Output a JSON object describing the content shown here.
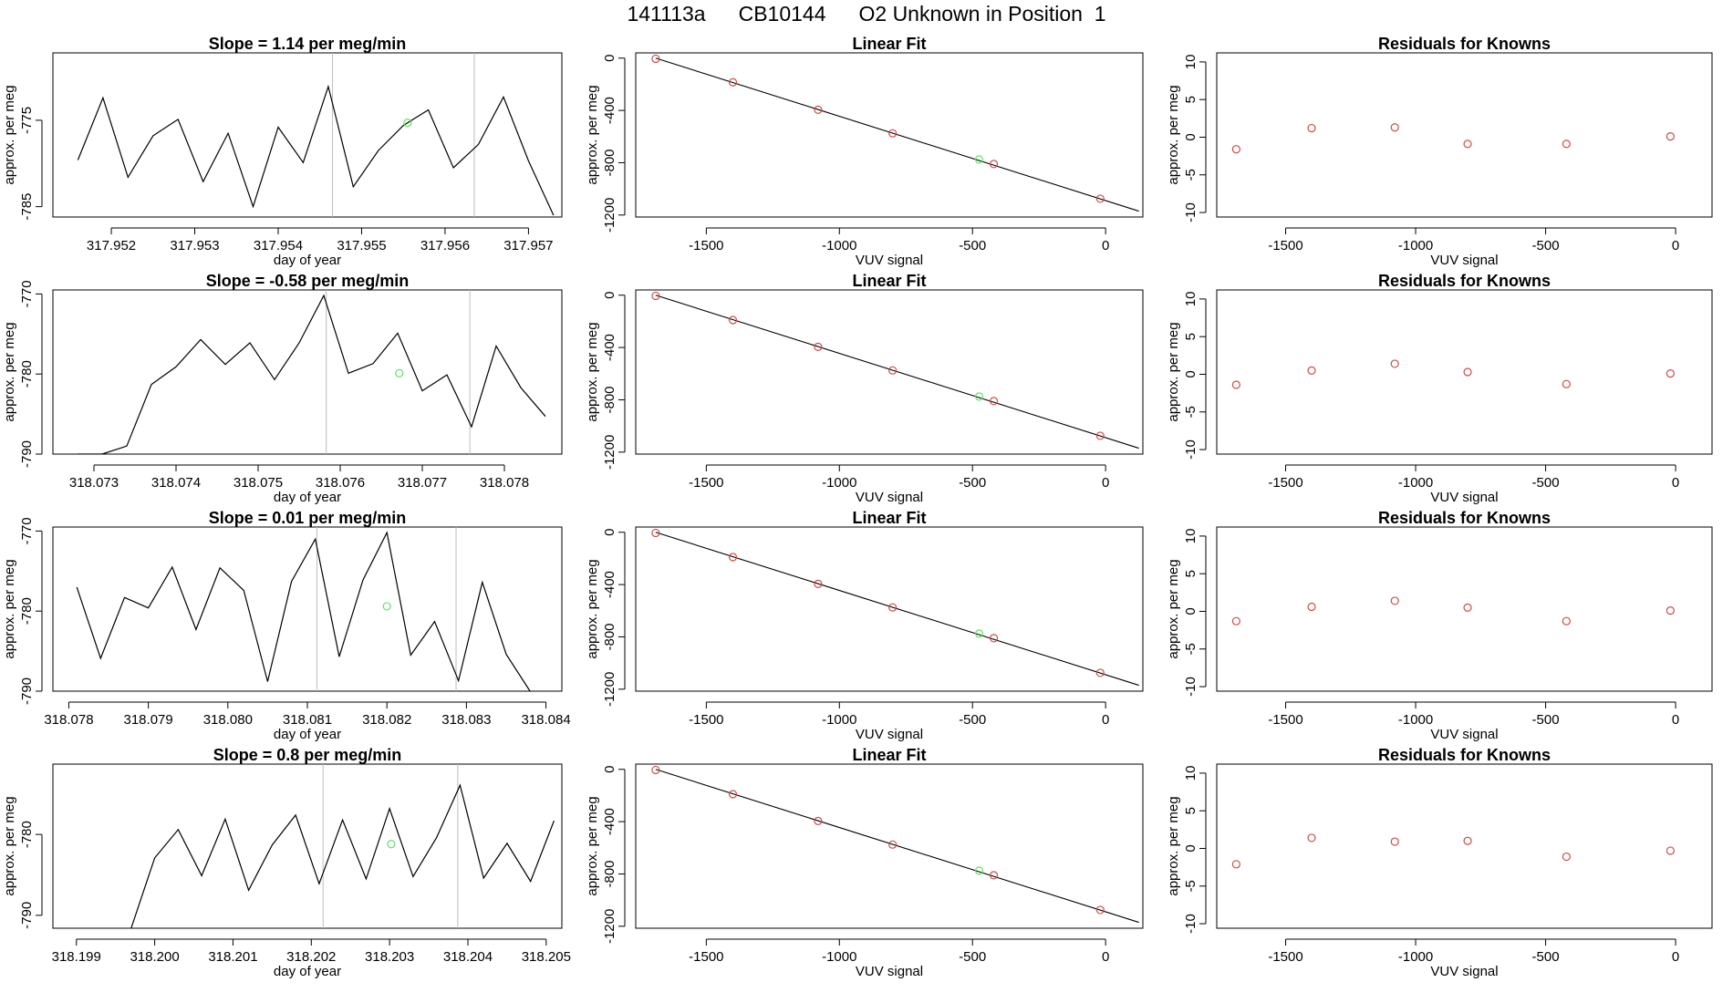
{
  "title": {
    "run_id": "141113a",
    "tank_id": "CB10144",
    "label": "O2 Unknown in Position  1"
  },
  "colors": {
    "line": "#000000",
    "axis": "#000000",
    "vline": "#bdbdbd",
    "known_point": "#cd4a4a",
    "unknown_point": "#5fe35f",
    "residual_point": "#cd4a4a"
  },
  "chart_data": [
    {
      "type": "line",
      "row": 1,
      "panel": "time_series",
      "title": "Slope =  1.14  per meg/min",
      "xlabel": "day of year",
      "ylabel": "approx. per meg",
      "xlim": [
        317.9513,
        317.9574
      ],
      "ylim": [
        -786.2,
        -767.2
      ],
      "xticks": [
        317.952,
        317.953,
        317.954,
        317.955,
        317.956,
        317.957
      ],
      "xtick_labels": [
        "317.952",
        "317.953",
        "317.954",
        "317.955",
        "317.956",
        "317.957"
      ],
      "yticks": [
        -775,
        -785
      ],
      "ytick_labels": [
        "-775",
        "-785"
      ],
      "vlines": [
        317.95465,
        317.95635
      ],
      "x": [
        317.9516,
        317.9519,
        317.9522,
        317.9525,
        317.9528,
        317.9531,
        317.9534,
        317.9537,
        317.954,
        317.9543,
        317.9546,
        317.9549,
        317.9552,
        317.9555,
        317.9558,
        317.9561,
        317.9564,
        317.9567,
        317.957,
        317.9573
      ],
      "values": [
        -779.6,
        -772.4,
        -781.6,
        -776.8,
        -774.9,
        -782.1,
        -776.5,
        -785,
        -775.8,
        -779.9,
        -771.1,
        -782.7,
        -778.5,
        -775.6,
        -773.8,
        -780.5,
        -777.8,
        -772.3,
        -779.7,
        -786
      ],
      "unknown_point": {
        "x": 317.95555,
        "y": -775.3
      }
    },
    {
      "type": "scatter",
      "row": 1,
      "panel": "linear_fit",
      "title": "Linear Fit",
      "xlabel": "VUV signal",
      "ylabel": "approx. per meg",
      "xlim": [
        -1765,
        140
      ],
      "ylim": [
        -1215,
        40
      ],
      "xticks": [
        -1500,
        -1000,
        -500,
        0
      ],
      "xtick_labels": [
        "-1500",
        "-1000",
        "-500",
        "0"
      ],
      "yticks": [
        0,
        -400,
        -800,
        -1200
      ],
      "ytick_labels": [
        "0",
        "-400",
        "-800",
        "-1200"
      ],
      "fit_line": [
        [
          -1690,
          0
        ],
        [
          125,
          -1170
        ]
      ],
      "x": [
        -1690,
        -1400,
        -1080,
        -800,
        -420,
        -20
      ],
      "values": [
        -5,
        -185,
        -395,
        -575,
        -810,
        -1075
      ],
      "unknown_point": {
        "x": -475,
        "y": -775
      }
    },
    {
      "type": "scatter",
      "row": 1,
      "panel": "residuals",
      "title": "Residuals for Knowns",
      "xlabel": "VUV signal",
      "ylabel": "approx. per meg",
      "xlim": [
        -1765,
        140
      ],
      "ylim": [
        -10.6,
        11.2
      ],
      "xticks": [
        -1500,
        -1000,
        -500,
        0
      ],
      "xtick_labels": [
        "-1500",
        "-1000",
        "-500",
        "0"
      ],
      "yticks": [
        10,
        5,
        0,
        -5,
        -10
      ],
      "ytick_labels": [
        "10",
        "5",
        "0",
        "-5",
        "-10"
      ],
      "x": [
        -1690,
        -1400,
        -1080,
        -800,
        -420,
        -20
      ],
      "values": [
        -1.6,
        1.2,
        1.3,
        -0.9,
        -0.9,
        0.1
      ]
    },
    {
      "type": "line",
      "row": 2,
      "panel": "time_series",
      "title": "Slope =  -0.58  per meg/min",
      "xlabel": "day of year",
      "ylabel": "approx. per meg",
      "xlim": [
        318.0725,
        318.0787
      ],
      "ylim": [
        -790,
        -769.5
      ],
      "xticks": [
        318.073,
        318.074,
        318.075,
        318.076,
        318.077,
        318.078
      ],
      "xtick_labels": [
        "318.073",
        "318.074",
        "318.075",
        "318.076",
        "318.077",
        "318.078"
      ],
      "yticks": [
        -770,
        -780,
        -790
      ],
      "ytick_labels": [
        "-770",
        "-780",
        "-790"
      ],
      "vlines": [
        318.07583,
        318.07758
      ],
      "x": [
        318.0728,
        318.0731,
        318.0734,
        318.0737,
        318.074,
        318.0743,
        318.0746,
        318.0749,
        318.0752,
        318.0755,
        318.0758,
        318.0761,
        318.0764,
        318.0767,
        318.077,
        318.0773,
        318.0776,
        318.0779,
        318.0782,
        318.0785
      ],
      "values": [
        -790,
        -790,
        -789,
        -781.3,
        -779.1,
        -775.7,
        -778.8,
        -776.1,
        -780.7,
        -776.1,
        -770.2,
        -779.9,
        -778.7,
        -774.9,
        -782.1,
        -780.1,
        -786.6,
        -776.5,
        -781.7,
        -785.3
      ],
      "unknown_point": {
        "x": 318.07672,
        "y": -779.9
      }
    },
    {
      "type": "scatter",
      "row": 2,
      "panel": "linear_fit",
      "title": "Linear Fit",
      "xlabel": "VUV signal",
      "ylabel": "approx. per meg",
      "xlim": [
        -1765,
        140
      ],
      "ylim": [
        -1215,
        40
      ],
      "xticks": [
        -1500,
        -1000,
        -500,
        0
      ],
      "xtick_labels": [
        "-1500",
        "-1000",
        "-500",
        "0"
      ],
      "yticks": [
        0,
        -400,
        -800,
        -1200
      ],
      "ytick_labels": [
        "0",
        "-400",
        "-800",
        "-1200"
      ],
      "fit_line": [
        [
          -1690,
          0
        ],
        [
          125,
          -1170
        ]
      ],
      "x": [
        -1690,
        -1400,
        -1080,
        -800,
        -420,
        -20
      ],
      "values": [
        -5,
        -190,
        -395,
        -575,
        -810,
        -1075
      ],
      "unknown_point": {
        "x": -475,
        "y": -775
      }
    },
    {
      "type": "scatter",
      "row": 2,
      "panel": "residuals",
      "title": "Residuals for Knowns",
      "xlabel": "VUV signal",
      "ylabel": "approx. per meg",
      "xlim": [
        -1765,
        140
      ],
      "ylim": [
        -10.6,
        11.2
      ],
      "xticks": [
        -1500,
        -1000,
        -500,
        0
      ],
      "xtick_labels": [
        "-1500",
        "-1000",
        "-500",
        "0"
      ],
      "yticks": [
        10,
        5,
        0,
        -5,
        -10
      ],
      "ytick_labels": [
        "10",
        "5",
        "0",
        "-5",
        "-10"
      ],
      "x": [
        -1690,
        -1400,
        -1080,
        -800,
        -420,
        -20
      ],
      "values": [
        -1.4,
        0.5,
        1.4,
        0.3,
        -1.3,
        0.1
      ]
    },
    {
      "type": "line",
      "row": 3,
      "panel": "time_series",
      "title": "Slope =  0.01  per meg/min",
      "xlabel": "day of year",
      "ylabel": "approx. per meg",
      "xlim": [
        318.0778,
        318.0842
      ],
      "ylim": [
        -790,
        -769.5
      ],
      "xticks": [
        318.078,
        318.079,
        318.08,
        318.081,
        318.082,
        318.083,
        318.084
      ],
      "xtick_labels": [
        "318.078",
        "318.079",
        "318.080",
        "318.081",
        "318.082",
        "318.083",
        "318.084"
      ],
      "yticks": [
        -770,
        -780,
        -790
      ],
      "ytick_labels": [
        "-770",
        "-780",
        "-790"
      ],
      "vlines": [
        318.08112,
        318.08287
      ],
      "x": [
        318.0781,
        318.0784,
        318.0787,
        318.079,
        318.0793,
        318.0796,
        318.0799,
        318.0802,
        318.0805,
        318.0808,
        318.0811,
        318.0814,
        318.0817,
        318.082,
        318.0823,
        318.0826,
        318.0829,
        318.0832,
        318.0835,
        318.0838
      ],
      "values": [
        -777,
        -785.9,
        -778.3,
        -779.6,
        -774.5,
        -782.3,
        -774.6,
        -777.4,
        -788.8,
        -776.3,
        -771,
        -785.7,
        -776.1,
        -770.2,
        -785.5,
        -781.3,
        -788.7,
        -776.4,
        -785.4,
        -790
      ],
      "unknown_point": {
        "x": 318.082,
        "y": -779.4
      }
    },
    {
      "type": "scatter",
      "row": 3,
      "panel": "linear_fit",
      "title": "Linear Fit",
      "xlabel": "VUV signal",
      "ylabel": "approx. per meg",
      "xlim": [
        -1765,
        140
      ],
      "ylim": [
        -1215,
        40
      ],
      "xticks": [
        -1500,
        -1000,
        -500,
        0
      ],
      "xtick_labels": [
        "-1500",
        "-1000",
        "-500",
        "0"
      ],
      "yticks": [
        0,
        -400,
        -800,
        -1200
      ],
      "ytick_labels": [
        "0",
        "-400",
        "-800",
        "-1200"
      ],
      "fit_line": [
        [
          -1690,
          0
        ],
        [
          125,
          -1170
        ]
      ],
      "x": [
        -1690,
        -1400,
        -1080,
        -800,
        -420,
        -20
      ],
      "values": [
        -5,
        -190,
        -395,
        -575,
        -810,
        -1075
      ],
      "unknown_point": {
        "x": -475,
        "y": -775
      }
    },
    {
      "type": "scatter",
      "row": 3,
      "panel": "residuals",
      "title": "Residuals for Knowns",
      "xlabel": "VUV signal",
      "ylabel": "approx. per meg",
      "xlim": [
        -1765,
        140
      ],
      "ylim": [
        -10.6,
        11.2
      ],
      "xticks": [
        -1500,
        -1000,
        -500,
        0
      ],
      "xtick_labels": [
        "-1500",
        "-1000",
        "-500",
        "0"
      ],
      "yticks": [
        10,
        5,
        0,
        -5,
        -10
      ],
      "ytick_labels": [
        "10",
        "5",
        "0",
        "-5",
        "-10"
      ],
      "x": [
        -1690,
        -1400,
        -1080,
        -800,
        -420,
        -20
      ],
      "values": [
        -1.3,
        0.6,
        1.4,
        0.5,
        -1.3,
        0.1
      ]
    },
    {
      "type": "line",
      "row": 4,
      "panel": "time_series",
      "title": "Slope =  0.8  per meg/min",
      "xlabel": "day of year",
      "ylabel": "approx. per meg",
      "xlim": [
        318.1987,
        318.2052
      ],
      "ylim": [
        -791.6,
        -771.3
      ],
      "xticks": [
        318.199,
        318.2,
        318.201,
        318.202,
        318.203,
        318.204,
        318.205
      ],
      "xtick_labels": [
        "318.199",
        "318.200",
        "318.201",
        "318.202",
        "318.203",
        "318.204",
        "318.205"
      ],
      "yticks": [
        -780,
        -790
      ],
      "ytick_labels": [
        "-780",
        "-790"
      ],
      "vlines": [
        318.20215,
        318.20387
      ],
      "x": [
        318.1997,
        318.2,
        318.2003,
        318.2006,
        318.2009,
        318.2012,
        318.2015,
        318.2018,
        318.2021,
        318.2024,
        318.2027,
        318.203,
        318.2033,
        318.2036,
        318.2039,
        318.2042,
        318.2045,
        318.2048,
        318.2051
      ],
      "values": [
        -791.6,
        -782.9,
        -779.4,
        -785.1,
        -778.1,
        -786.9,
        -781.3,
        -777.6,
        -786.1,
        -778.2,
        -785.5,
        -776.8,
        -785.2,
        -780.4,
        -773.9,
        -785.4,
        -781.1,
        -785.8,
        -778.3
      ],
      "unknown_point": {
        "x": 318.20302,
        "y": -781.2
      }
    },
    {
      "type": "scatter",
      "row": 4,
      "panel": "linear_fit",
      "title": "Linear Fit",
      "xlabel": "VUV signal",
      "ylabel": "approx. per meg",
      "xlim": [
        -1765,
        140
      ],
      "ylim": [
        -1215,
        40
      ],
      "xticks": [
        -1500,
        -1000,
        -500,
        0
      ],
      "xtick_labels": [
        "-1500",
        "-1000",
        "-500",
        "0"
      ],
      "yticks": [
        0,
        -400,
        -800,
        -1200
      ],
      "ytick_labels": [
        "0",
        "-400",
        "-800",
        "-1200"
      ],
      "fit_line": [
        [
          -1690,
          0
        ],
        [
          125,
          -1170
        ]
      ],
      "x": [
        -1690,
        -1400,
        -1080,
        -800,
        -420,
        -20
      ],
      "values": [
        -5,
        -190,
        -395,
        -575,
        -810,
        -1075
      ],
      "unknown_point": {
        "x": -475,
        "y": -775
      }
    },
    {
      "type": "scatter",
      "row": 4,
      "panel": "residuals",
      "title": "Residuals for Knowns",
      "xlabel": "VUV signal",
      "ylabel": "approx. per meg",
      "xlim": [
        -1765,
        140
      ],
      "ylim": [
        -10.6,
        11.2
      ],
      "xticks": [
        -1500,
        -1000,
        -500,
        0
      ],
      "xtick_labels": [
        "-1500",
        "-1000",
        "-500",
        "0"
      ],
      "yticks": [
        10,
        5,
        0,
        -5,
        -10
      ],
      "ytick_labels": [
        "10",
        "5",
        "0",
        "-5",
        "-10"
      ],
      "x": [
        -1690,
        -1400,
        -1080,
        -800,
        -420,
        -20
      ],
      "values": [
        -2.1,
        1.4,
        0.9,
        1.0,
        -1.1,
        -0.3
      ]
    }
  ]
}
